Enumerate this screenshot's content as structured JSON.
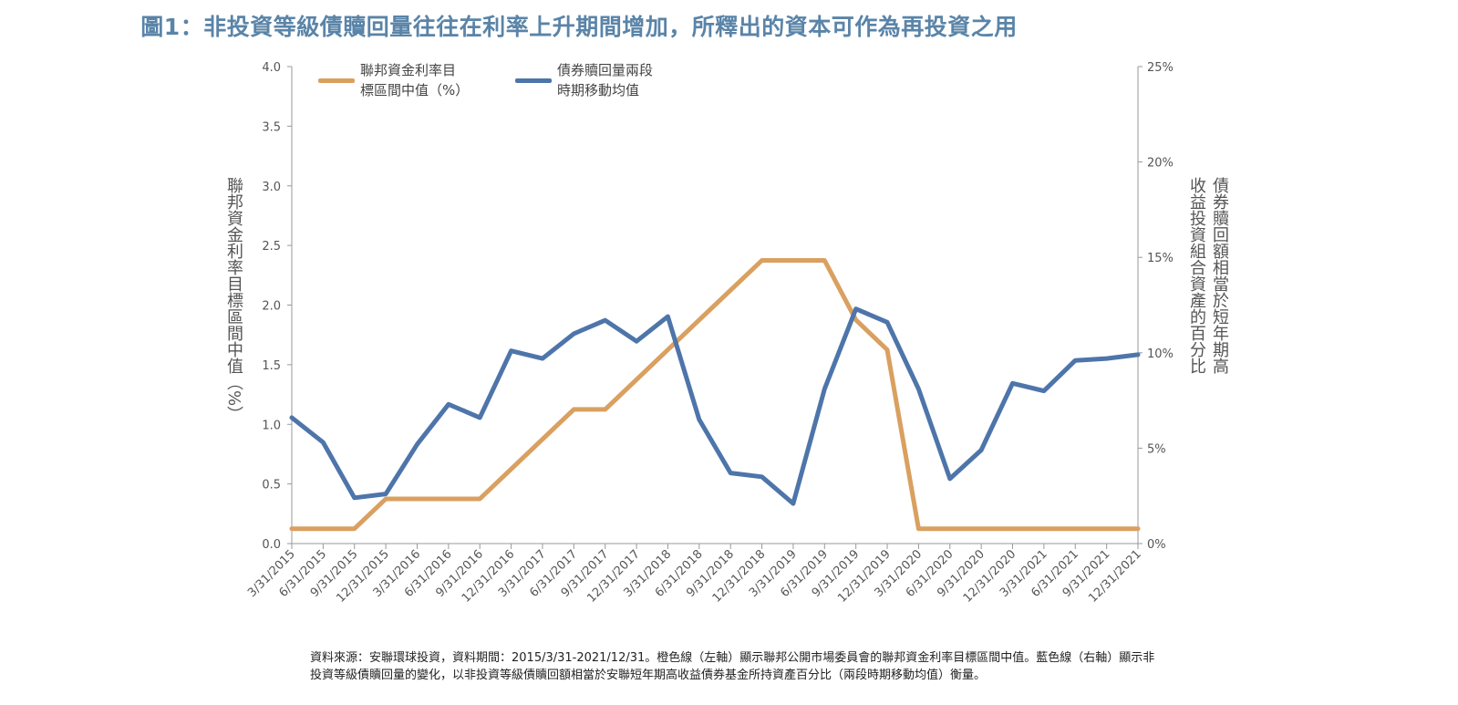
{
  "title": "圖1：非投資等級債贖回量往往在利率上升期間增加，所釋出的資本可作為再投資之用",
  "legend": {
    "fed": {
      "line1": "聯邦資金利率目",
      "line2": "標區間中值（%）"
    },
    "bond": {
      "line1": "債券贖回量兩段",
      "line2": "時期移動均值"
    }
  },
  "axis_labels": {
    "left": "聯邦資金利率目標區間中值（%）",
    "right_col1": "債券贖回額相當於短年期高",
    "right_col2": "收益投資組合資產的百分比"
  },
  "source_note": "資料來源：安聯環球投資，資料期間：2015/3/31-2021/12/31。橙色線（左軸）顯示聯邦公開市場委員會的聯邦資金利率目標區間中值。藍色線（右軸）顯示非投資等級債贖回量的變化，以非投資等級債贖回額相當於安聯短年期高收益債券基金所持資產百分比（兩段時期移動均值）衡量。",
  "colors": {
    "fed": "#d9a060",
    "bond": "#4e75aa",
    "title": "#5a84a8",
    "axis": "#999999"
  },
  "chart_data": {
    "type": "line",
    "x": [
      "3/31/2015",
      "6/31/2015",
      "9/31/2015",
      "12/31/2015",
      "3/31/2016",
      "6/31/2016",
      "9/31/2016",
      "12/31/2016",
      "3/31/2017",
      "6/31/2017",
      "9/31/2017",
      "12/31/2017",
      "3/31/2018",
      "6/31/2018",
      "9/31/2018",
      "12/31/2018",
      "3/31/2019",
      "6/31/2019",
      "9/31/2019",
      "12/31/2019",
      "3/31/2020",
      "6/31/2020",
      "9/31/2020",
      "12/31/2020",
      "3/31/2021",
      "6/31/2021",
      "9/31/2021",
      "12/31/2021"
    ],
    "y_left": {
      "ticks": [
        "4.0",
        "3.5",
        "3.0",
        "2.5",
        "2.0",
        "1.5",
        "1.0",
        "0.5",
        "0.0"
      ],
      "ylim": [
        0,
        4
      ]
    },
    "y_right": {
      "ticks": [
        "25%",
        "20%",
        "15%",
        "10%",
        "5%",
        "0%"
      ],
      "ylim": [
        0,
        25
      ]
    },
    "series": [
      {
        "name": "聯邦資金利率目標區間中值（%）",
        "axis": "left",
        "values": [
          0.125,
          0.125,
          0.125,
          0.375,
          0.375,
          0.375,
          0.375,
          0.625,
          0.875,
          1.125,
          1.125,
          1.375,
          1.625,
          1.875,
          2.125,
          2.375,
          2.375,
          2.375,
          1.875,
          1.625,
          0.125,
          0.125,
          0.125,
          0.125,
          0.125,
          0.125,
          0.125,
          0.125
        ]
      },
      {
        "name": "債券贖回量兩段時期移動均值",
        "axis": "right",
        "values": [
          6.6,
          5.3,
          2.4,
          2.6,
          5.2,
          7.3,
          6.6,
          10.1,
          9.7,
          11.0,
          11.7,
          10.6,
          11.9,
          6.5,
          3.7,
          3.5,
          2.1,
          8.1,
          12.3,
          11.6,
          8.1,
          3.4,
          4.9,
          8.4,
          8.0,
          9.6,
          9.7,
          9.9
        ]
      }
    ]
  }
}
